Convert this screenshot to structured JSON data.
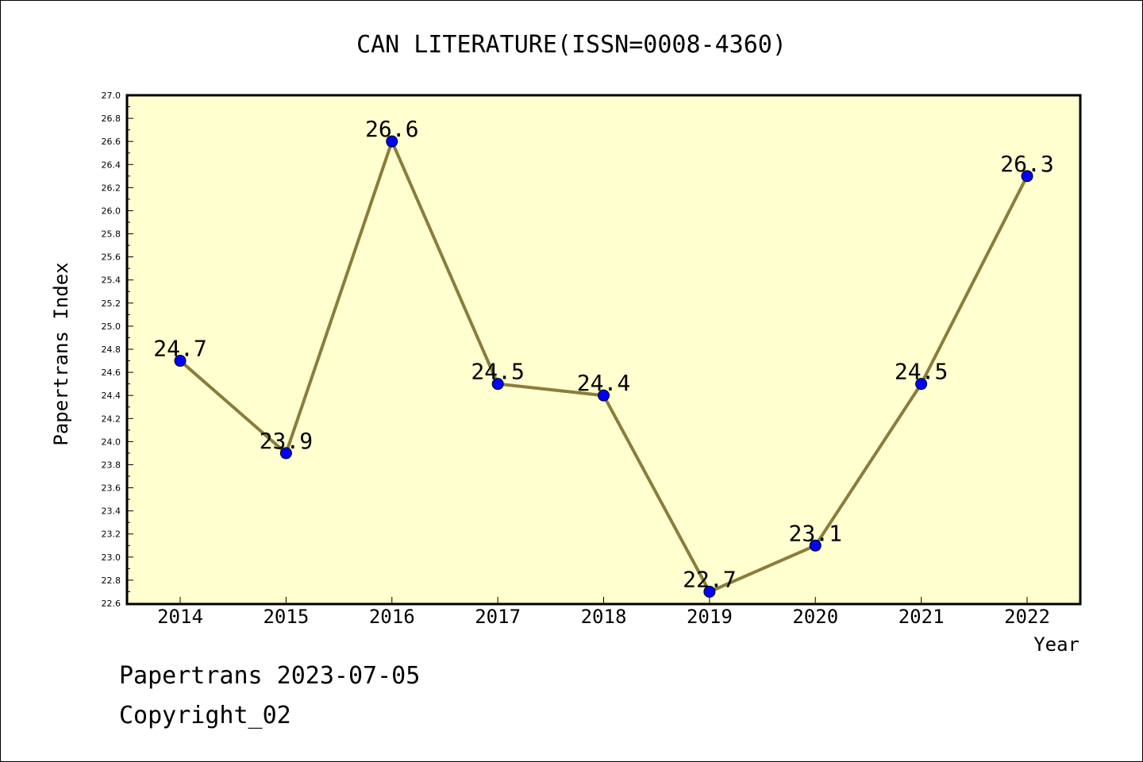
{
  "chart_data": {
    "type": "line",
    "title": "CAN LITERATURE(ISSN=0008-4360)",
    "xlabel": "Year",
    "ylabel": "Papertrans Index",
    "categories": [
      "2014",
      "2015",
      "2016",
      "2017",
      "2018",
      "2019",
      "2020",
      "2021",
      "2022"
    ],
    "series": [
      {
        "values": [
          24.7,
          23.9,
          26.6,
          24.5,
          24.4,
          22.7,
          23.1,
          24.5,
          26.3
        ]
      }
    ],
    "data_labels": [
      "24.7",
      "23.9",
      "26.6",
      "24.5",
      "24.4",
      "22.7",
      "23.1",
      "24.5",
      "26.3"
    ],
    "ylim": [
      22.6,
      27.0
    ],
    "y_ticks": [
      "22.6",
      "22.8",
      "23.0",
      "23.2",
      "23.4",
      "23.6",
      "23.8",
      "24.0",
      "24.2",
      "24.4",
      "24.6",
      "24.8",
      "25.0",
      "25.2",
      "25.4",
      "25.6",
      "25.8",
      "26.0",
      "26.2",
      "26.4",
      "26.6",
      "26.8",
      "27.0"
    ],
    "grid": false,
    "colors": {
      "line": "#8b7d3a",
      "marker": "#0000ff",
      "plot_background": "#ffffd0"
    }
  },
  "footer": {
    "line1": "Papertrans 2023-07-05",
    "line2": "Copyright_02"
  }
}
